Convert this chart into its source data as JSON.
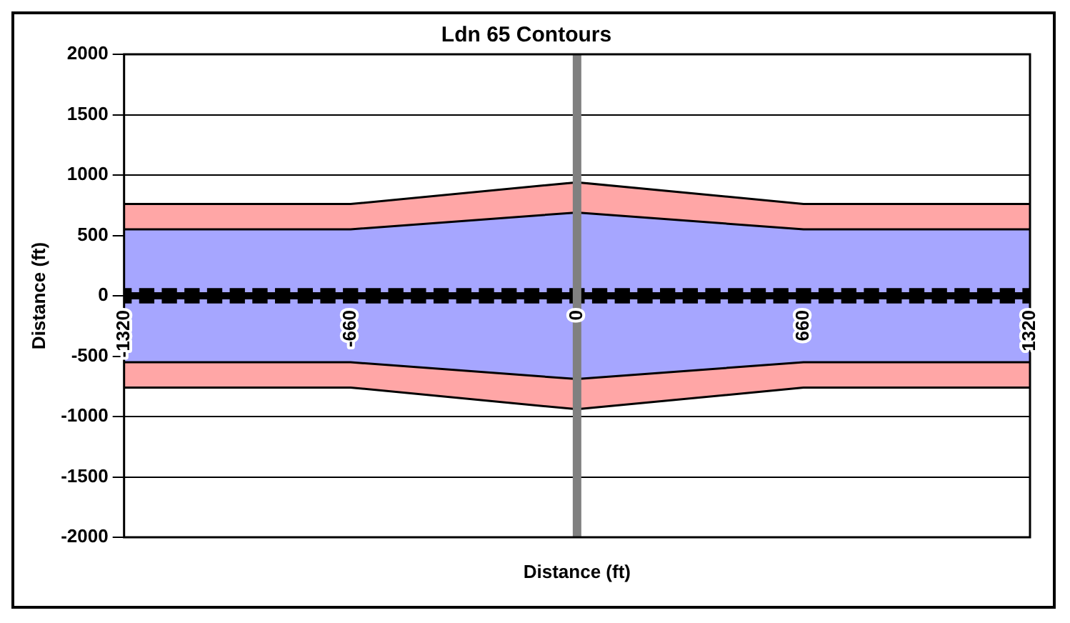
{
  "chart_data": {
    "type": "area",
    "title": "Ldn 65 Contours",
    "xlabel": "Distance (ft)",
    "ylabel": "Distance (ft)",
    "x": [
      -1320,
      -660,
      0,
      660,
      1320
    ],
    "series": [
      {
        "color": "#ffa6a6",
        "values": [
          760,
          760,
          940,
          760,
          760
        ]
      },
      {
        "color": "#ffa6a6",
        "values": [
          -760,
          -760,
          -940,
          -760,
          -760
        ]
      },
      {
        "color": "#a6a6ff",
        "values": [
          550,
          550,
          690,
          550,
          550
        ]
      },
      {
        "color": "#a6a6ff",
        "values": [
          -550,
          -550,
          -690,
          -550,
          -550
        ]
      },
      {
        "type": "line",
        "color": "#000000",
        "marker": "square",
        "x": [
          -1320,
          -1254,
          -1188,
          -1122,
          -1056,
          -990,
          -924,
          -858,
          -792,
          -726,
          -660,
          -594,
          -528,
          -462,
          -396,
          -330,
          -264,
          -198,
          -132,
          -66,
          0,
          66,
          132,
          198,
          264,
          330,
          396,
          462,
          528,
          594,
          660,
          726,
          792,
          858,
          924,
          990,
          1056,
          1122,
          1188,
          1254,
          1320
        ],
        "values": [
          0,
          0,
          0,
          0,
          0,
          0,
          0,
          0,
          0,
          0,
          0,
          0,
          0,
          0,
          0,
          0,
          0,
          0,
          0,
          0,
          0,
          0,
          0,
          0,
          0,
          0,
          0,
          0,
          0,
          0,
          0,
          0,
          0,
          0,
          0,
          0,
          0,
          0,
          0,
          0,
          0
        ]
      }
    ],
    "xlim": [
      -1320,
      1320
    ],
    "xticks": [
      -1320,
      -660,
      0,
      660,
      1320
    ],
    "ylim": [
      -2000,
      2000
    ],
    "yticks": [
      -2000,
      -1500,
      -1000,
      -500,
      0,
      500,
      1000,
      1500,
      2000
    ],
    "ref_lines": [
      {
        "axis": "x",
        "value": 0,
        "color": "#808080"
      }
    ],
    "grid": "y",
    "legend": false
  }
}
